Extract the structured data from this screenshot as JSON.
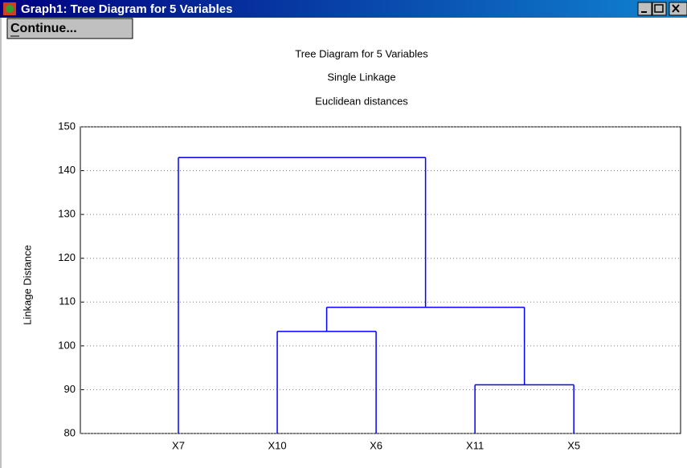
{
  "window": {
    "title": "Graph1: Tree Diagram for 5 Variables",
    "button": "Continue..."
  },
  "chart_data": {
    "type": "dendrogram",
    "title": "Tree Diagram for 5 Variables",
    "subtitle": "Single Linkage",
    "subtitle2": "Euclidean distances",
    "ylabel": "Linkage Distance",
    "color": "#0000ff",
    "ylim": [
      80,
      150
    ],
    "yticks": [
      80,
      90,
      100,
      110,
      120,
      130,
      140,
      150
    ],
    "grid": true,
    "tree": {
      "height": 143,
      "children": [
        "X7",
        {
          "height": 108.8,
          "children": [
            {
              "height": 103.3,
              "children": [
                "X10",
                "X6"
              ]
            },
            {
              "height": 91.1,
              "children": [
                "X11",
                "X5"
              ]
            }
          ]
        }
      ]
    }
  }
}
